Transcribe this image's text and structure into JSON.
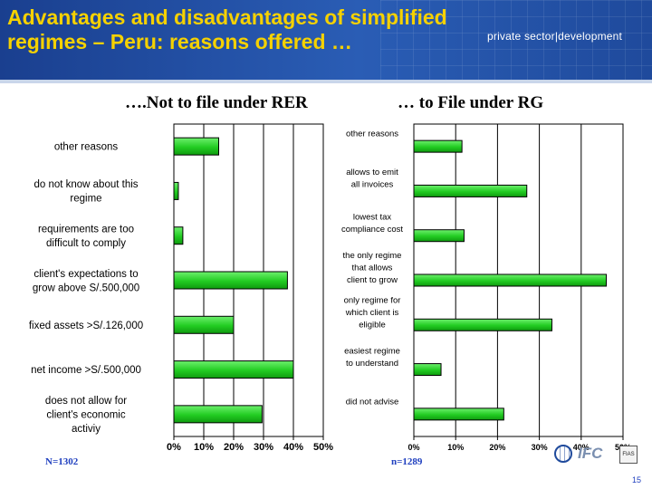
{
  "header": {
    "title": "Advantages and disadvantages of simplified regimes – Peru: reasons offered …",
    "brand": "private sector|development"
  },
  "chart_data": [
    {
      "type": "bar",
      "orientation": "horizontal",
      "title": "….Not to file under RER",
      "categories": [
        "other reasons",
        "do not know about this regime",
        "requirements are too difficult to comply",
        "client's expectations to grow above S/.500,000",
        "fixed assets >S/.126,000",
        "net income >S/.500,000",
        "does not allow for client's economic activiy"
      ],
      "values": [
        15,
        1.5,
        3,
        38,
        20,
        40,
        29.5
      ],
      "xlim": [
        0,
        50
      ],
      "xticks": [
        "0%",
        "10%",
        "20%",
        "30%",
        "40%",
        "50%"
      ],
      "grid": true,
      "bar_color": "#22cc22",
      "sample": "N=1302"
    },
    {
      "type": "bar",
      "orientation": "horizontal",
      "title": "… to File under RG",
      "categories": [
        "other reasons",
        "allows to emit all invoices",
        "lowest tax compliance cost",
        "the only regime that allows client to grow",
        "only regime for which client is eligible",
        "easiest regime to understand",
        "did not advise"
      ],
      "values": [
        11.5,
        27,
        12,
        46,
        33,
        6.5,
        21.5
      ],
      "xlim": [
        0,
        50
      ],
      "xticks": [
        "0%",
        "10%",
        "20%",
        "30%",
        "40%",
        "50%"
      ],
      "grid": true,
      "bar_color": "#22cc22",
      "sample": "n=1289"
    }
  ],
  "logos": {
    "ifc": "IFC",
    "fias": "FIAS"
  },
  "page_number": "15"
}
